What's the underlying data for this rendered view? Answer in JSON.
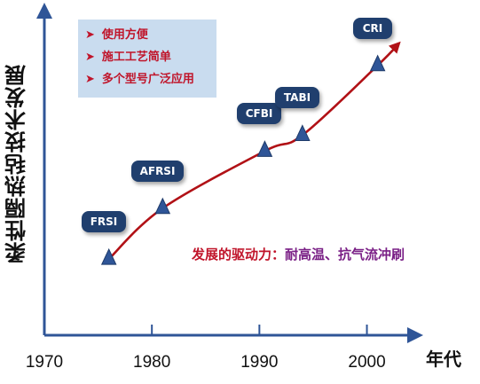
{
  "chart_data": {
    "type": "line",
    "ylabel": "柔性隔热毡技术发展",
    "xlabel": "年代",
    "x_ticks": [
      1970,
      1980,
      1990,
      2000
    ],
    "xlim": [
      1970,
      2004
    ],
    "ylim": [
      0,
      10
    ],
    "points": [
      {
        "label": "FRSI",
        "x": 1976,
        "y": 2.4
      },
      {
        "label": "AFRSI",
        "x": 1981,
        "y": 4.0
      },
      {
        "label": "CFBI",
        "x": 1990.5,
        "y": 5.8
      },
      {
        "label": "TABI",
        "x": 1994,
        "y": 6.3
      },
      {
        "label": "CRI",
        "x": 2001,
        "y": 8.5
      }
    ],
    "trend_end": {
      "x": 2003,
      "y": 9.2
    },
    "colors": {
      "trend": "#b11116",
      "marker": "#2f5597",
      "pill": "#203f6e",
      "box": "#c9dcef",
      "text_red": "#c0142a",
      "text_purple": "#7a1f86"
    }
  },
  "infobox": {
    "items": [
      "使用方便",
      "施工工艺简单",
      "多个型号广泛应用"
    ]
  },
  "driver": {
    "label": "发展的驱动力：",
    "value": "耐高温、抗气流冲刷"
  }
}
